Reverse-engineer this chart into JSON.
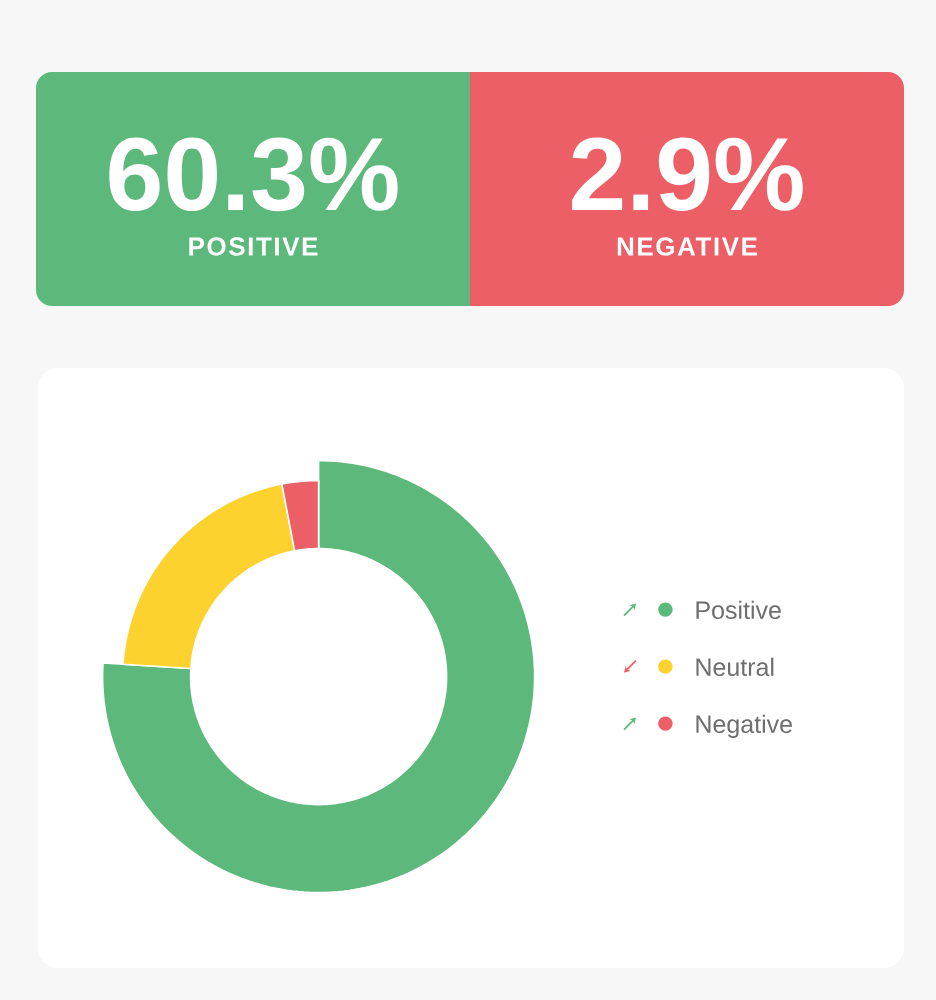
{
  "chart_data": [
    {
      "type": "other",
      "categories": [
        "POSITIVE",
        "NEGATIVE"
      ],
      "value_labels": [
        "60.3%",
        "2.9%"
      ],
      "colors": [
        "#5db97b",
        "#ec5f66"
      ]
    },
    {
      "type": "donut",
      "categories": [
        "Positive",
        "Neutral",
        "Negative"
      ],
      "values": [
        76,
        21,
        3
      ],
      "colors": [
        "#5db97b",
        "#fdd22f",
        "#ec5f66"
      ],
      "legend": "right"
    }
  ]
}
